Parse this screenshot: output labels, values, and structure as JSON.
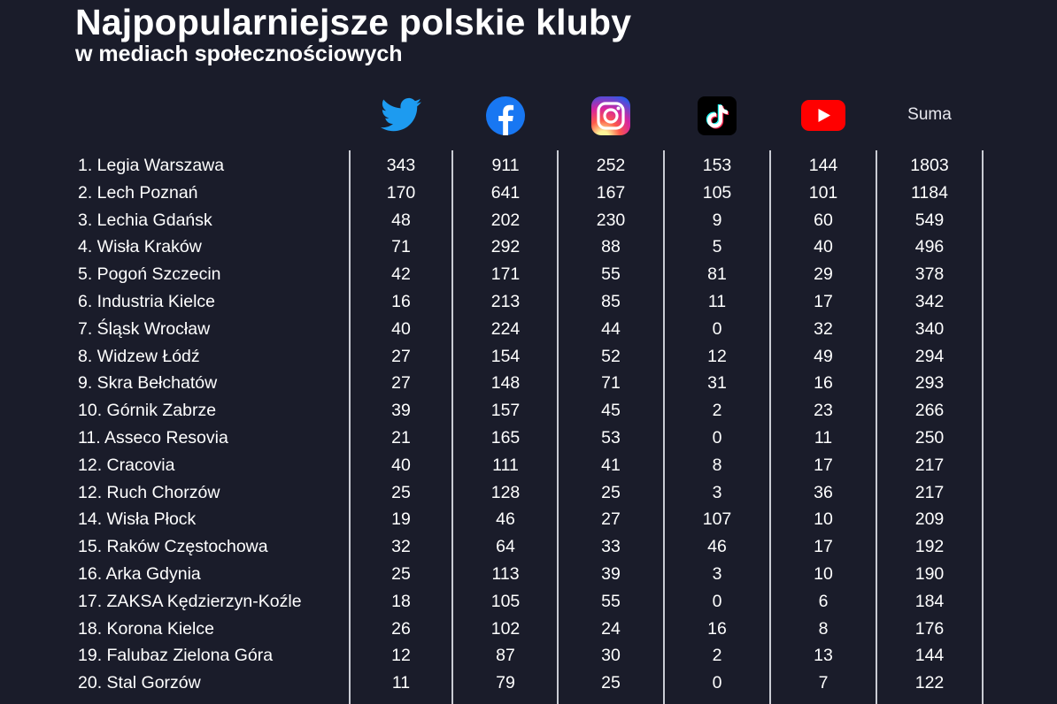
{
  "title": "Najpopularniejsze polskie kluby",
  "subtitle": "w mediach społecznościowych",
  "columns": [
    {
      "key": "twitter",
      "icon": "twitter-bird-icon",
      "color": "#1d9bf0"
    },
    {
      "key": "facebook",
      "icon": "facebook-icon",
      "color": "#1877f2"
    },
    {
      "key": "instagram",
      "icon": "instagram-icon",
      "color": "#dd2a7b"
    },
    {
      "key": "tiktok",
      "icon": "tiktok-icon",
      "color": "#000000"
    },
    {
      "key": "youtube",
      "icon": "youtube-icon",
      "color": "#ff0000"
    },
    {
      "key": "suma",
      "label": "Suma"
    }
  ],
  "chart_data": {
    "type": "table",
    "title": "Najpopularniejsze polskie kluby",
    "subtitle": "w mediach społecznościowych",
    "headers": [
      "Twitter",
      "Facebook",
      "Instagram",
      "TikTok",
      "YouTube",
      "Suma"
    ],
    "rows": [
      {
        "club": "1.  Legia Warszawa",
        "values": [
          "343",
          "911",
          "252",
          "153",
          "144",
          "1803"
        ]
      },
      {
        "club": "2. Lech Poznań",
        "values": [
          "170",
          "641",
          "167",
          "105",
          "101",
          "1184"
        ]
      },
      {
        "club": "3. Lechia Gdańsk",
        "values": [
          "48",
          "202",
          "230",
          "9",
          "60",
          "549"
        ]
      },
      {
        "club": "4. Wisła Kraków",
        "values": [
          "71",
          "292",
          "88",
          "5",
          "40",
          "496"
        ]
      },
      {
        "club": "5. Pogoń Szczecin",
        "values": [
          "42",
          "171",
          "55",
          "81",
          "29",
          "378"
        ]
      },
      {
        "club": "6. Industria Kielce",
        "values": [
          "16",
          "213",
          "85",
          "11",
          "17",
          "342"
        ]
      },
      {
        "club": "7. Śląsk Wrocław",
        "values": [
          "40",
          "224",
          "44",
          "0",
          "32",
          "340"
        ]
      },
      {
        "club": "8. Widzew Łódź",
        "values": [
          "27",
          "154",
          "52",
          "12",
          "49",
          "294"
        ]
      },
      {
        "club": "9. Skra Bełchatów",
        "values": [
          "27",
          "148",
          "71",
          "31",
          "16",
          "293"
        ]
      },
      {
        "club": "10. Górnik Zabrze",
        "values": [
          "39",
          "157",
          "45",
          "2",
          "23",
          "266"
        ]
      },
      {
        "club": "11. Asseco Resovia",
        "values": [
          "21",
          "165",
          "53",
          "0",
          "11",
          "250"
        ]
      },
      {
        "club": "12. Cracovia",
        "values": [
          "40",
          "111",
          "41",
          "8",
          "17",
          "217"
        ]
      },
      {
        "club": "12. Ruch Chorzów",
        "values": [
          "25",
          "128",
          "25",
          "3",
          "36",
          "217"
        ]
      },
      {
        "club": "14. Wisła Płock",
        "values": [
          "19",
          "46",
          "27",
          "107",
          "10",
          "209"
        ]
      },
      {
        "club": "15. Raków Częstochowa",
        "values": [
          "32",
          "64",
          "33",
          "46",
          "17",
          "192"
        ]
      },
      {
        "club": "16. Arka Gdynia",
        "values": [
          "25",
          "113",
          "39",
          "3",
          "10",
          "190"
        ]
      },
      {
        "club": "17. ZAKSA Kędzierzyn-Koźle",
        "values": [
          "18",
          "105",
          "55",
          "0",
          "6",
          "184"
        ]
      },
      {
        "club": "18. Korona Kielce",
        "values": [
          "26",
          "102",
          "24",
          "16",
          "8",
          "176"
        ]
      },
      {
        "club": "19. Falubaz Zielona Góra",
        "values": [
          "12",
          "87",
          "30",
          "2",
          "13",
          "144"
        ]
      },
      {
        "club": "20. Stal Gorzów",
        "values": [
          "11",
          "79",
          "25",
          "0",
          "7",
          "122"
        ]
      }
    ]
  }
}
